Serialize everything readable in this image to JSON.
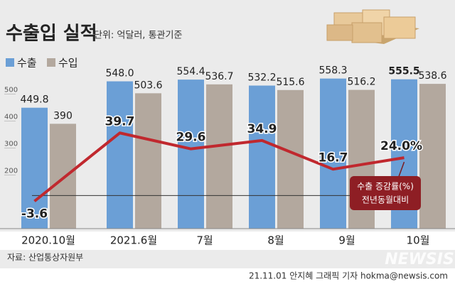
{
  "chart_data": {
    "type": "bar-line",
    "title": "수출입 실적",
    "subtitle": "단위: 억달러, 통관기준",
    "categories": [
      "2020.10월",
      "2021.6월",
      "7월",
      "8월",
      "9월",
      "10월"
    ],
    "series": [
      {
        "name": "수출",
        "color": "#6b9fd6",
        "values": [
          449.8,
          548.0,
          554.4,
          532.2,
          558.3,
          555.5
        ],
        "value_labels": [
          "449.8",
          "548.0",
          "554.4",
          "532.2",
          "558.3",
          "555.5"
        ]
      },
      {
        "name": "수입",
        "color": "#b3a89e",
        "values": [
          390,
          503.6,
          536.7,
          515.6,
          516.2,
          538.6
        ],
        "value_labels": [
          "390",
          "503.6",
          "536.7",
          "515.6",
          "516.2",
          "538.6"
        ]
      },
      {
        "name": "수출 증감률(%)",
        "type": "line",
        "axis": "y2",
        "color": "#c0282e",
        "values": [
          -3.6,
          39.7,
          29.6,
          34.9,
          16.7,
          24.0
        ],
        "value_labels": [
          "-3.6",
          "39.7",
          "29.6",
          "34.9",
          "16.7",
          "24.0%"
        ]
      }
    ],
    "annotation": "전년동월대비",
    "ylim": [
      0,
      560
    ],
    "yticks": [
      200,
      300,
      400,
      500
    ],
    "y2lim": [
      -21,
      74.5
    ],
    "source": "자료: 산업통상자원부",
    "credit": "21.11.01 안지혜 그래픽 기자 hokma@newsis.com",
    "watermark": "NEWSIS"
  }
}
